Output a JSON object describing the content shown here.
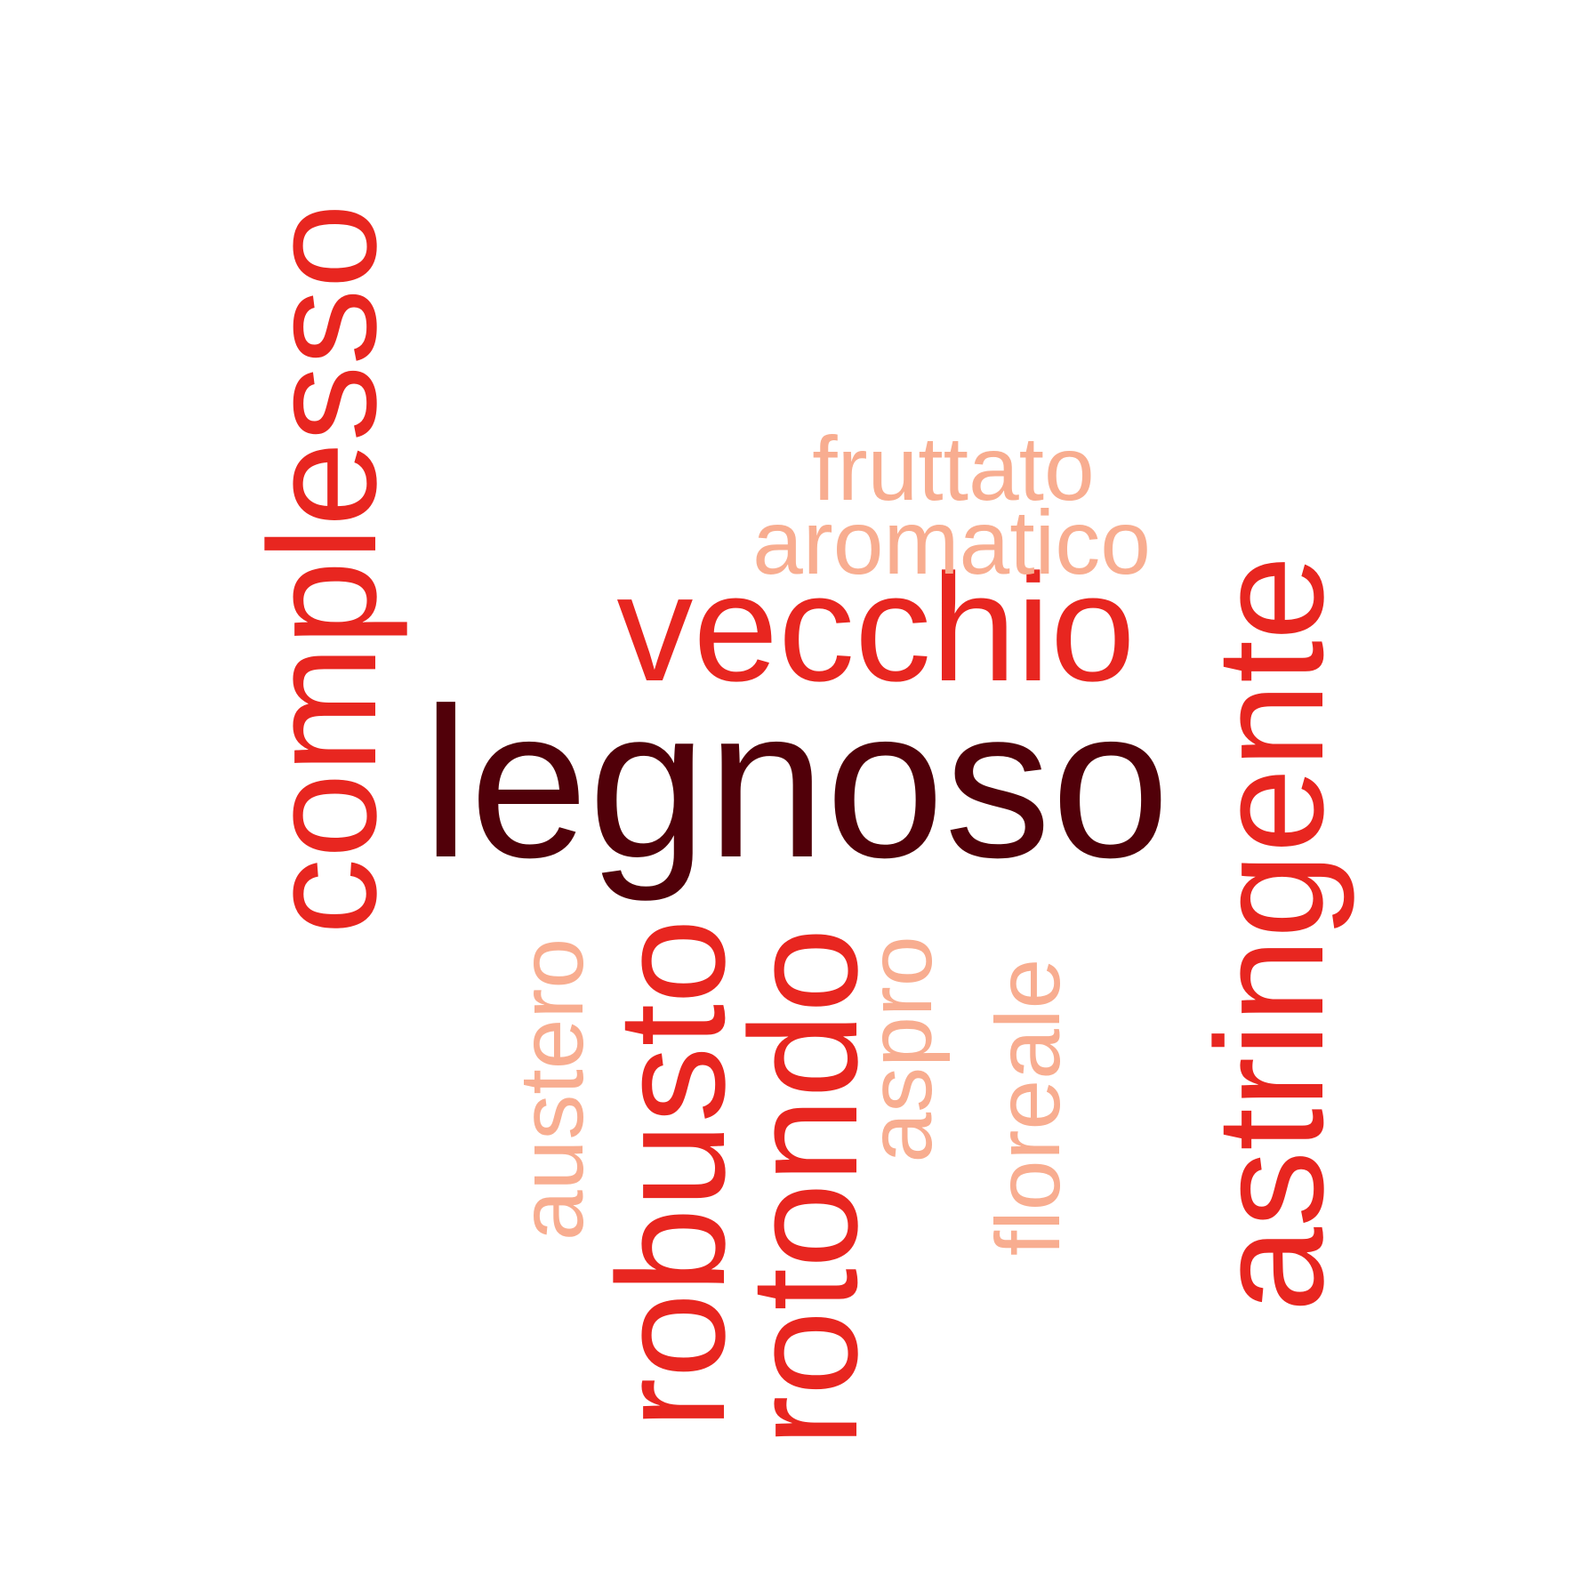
{
  "words": {
    "legnoso": "legnoso",
    "vecchio": "vecchio",
    "fruttato": "fruttato",
    "aromatico": "aromatico",
    "complesso": "complesso",
    "astringente": "astringente",
    "robusto": "robusto",
    "rotondo": "rotondo",
    "austero": "austero",
    "aspro": "aspro",
    "floreale": "floreale"
  },
  "colors": {
    "dark": "#510009",
    "medium": "#e82620",
    "light": "#f8ad90"
  }
}
